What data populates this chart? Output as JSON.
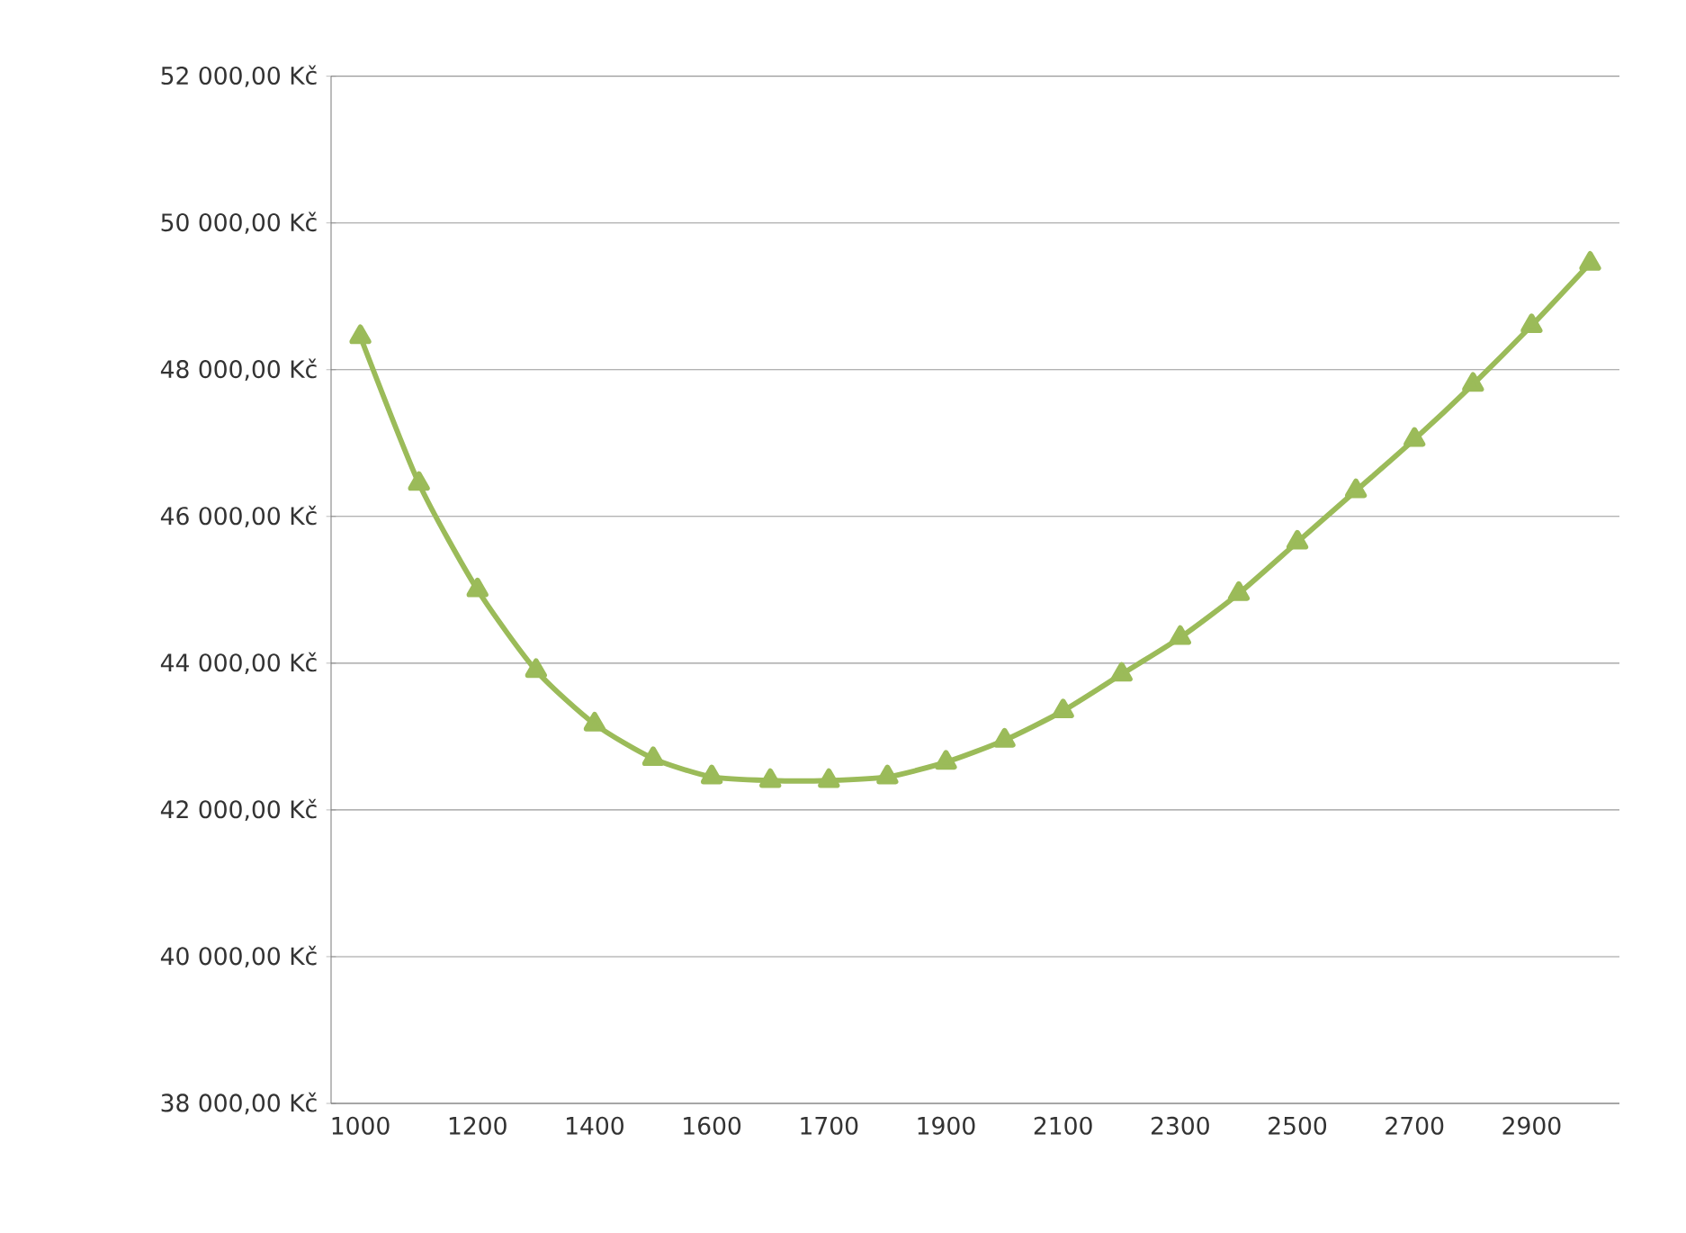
{
  "chart_data": {
    "type": "line",
    "categories": [
      "1000",
      null,
      "1200",
      null,
      "1400",
      null,
      "1600",
      null,
      "1700",
      null,
      "1900",
      null,
      "2100",
      null,
      "2300",
      null,
      "2500",
      null,
      "2700",
      null,
      "2900",
      null
    ],
    "series": [
      {
        "color": "#9bbb59",
        "values": [
          48450,
          46450,
          45000,
          43900,
          43170,
          42700,
          42450,
          42400,
          42400,
          42450,
          42650,
          42950,
          43350,
          43850,
          44350,
          44950,
          45650,
          46350,
          47050,
          47800,
          48600,
          49450
        ]
      }
    ],
    "ylim": [
      38000,
      52000
    ],
    "yticks": [
      {
        "value": 38000,
        "label": "38 000,00 Kč"
      },
      {
        "value": 40000,
        "label": "40 000,00 Kč"
      },
      {
        "value": 42000,
        "label": "42 000,00 Kč"
      },
      {
        "value": 44000,
        "label": "44 000,00 Kč"
      },
      {
        "value": 46000,
        "label": "46 000,00 Kč"
      },
      {
        "value": 48000,
        "label": "48 000,00 Kč"
      },
      {
        "value": 50000,
        "label": "50 000,00 Kč"
      },
      {
        "value": 52000,
        "label": "52 000,00 Kč"
      }
    ],
    "grid": "y",
    "marker": "triangle",
    "line_style": "solid"
  }
}
